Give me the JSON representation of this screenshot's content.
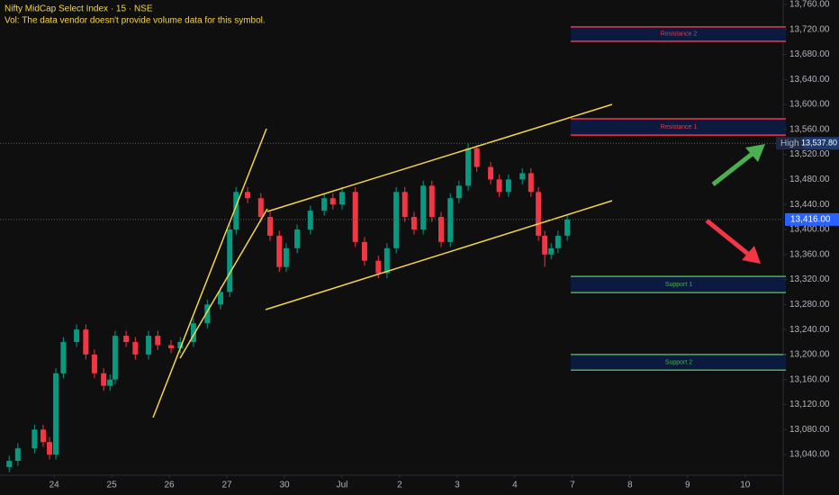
{
  "chart_data": {
    "type": "candlestick",
    "title": "Nifty MidCap Select Index · 15 · NSE",
    "subtitle": "Vol: The data vendor doesn't provide volume data for this symbol.",
    "up_color": "#089981",
    "down_color": "#f23645",
    "x": [
      -0.78,
      -0.63,
      -0.34,
      -0.19,
      -0.08,
      0.03,
      0.16,
      0.39,
      0.55,
      0.7,
      0.86,
      0.97,
      1.06,
      1.25,
      1.41,
      1.64,
      1.8,
      2.03,
      2.19,
      2.42,
      2.66,
      2.89,
      3.05,
      3.16,
      3.36,
      3.59,
      3.75,
      3.91,
      4.03,
      4.22,
      4.45,
      4.69,
      4.84,
      5.0,
      5.23,
      5.39,
      5.63,
      5.78,
      5.94,
      6.09,
      6.25,
      6.41,
      6.56,
      6.72,
      6.88,
      7.03,
      7.19,
      7.34,
      7.58,
      7.73,
      7.89,
      8.13,
      8.28,
      8.41,
      8.52,
      8.63,
      8.75,
      8.91
    ],
    "open": [
      13020,
      13030,
      13050,
      13080,
      13060,
      13040,
      13170,
      13220,
      13240,
      13200,
      13170,
      13150,
      13160,
      13230,
      13220,
      13200,
      13230,
      13215,
      13210,
      13220,
      13250,
      13280,
      13300,
      13400,
      13460,
      13450,
      13420,
      13390,
      13340,
      13370,
      13400,
      13430,
      13450,
      13440,
      13460,
      13380,
      13350,
      13330,
      13370,
      13460,
      13420,
      13400,
      13470,
      13420,
      13380,
      13450,
      13470,
      13530,
      13500,
      13480,
      13460,
      13480,
      13490,
      13460,
      13390,
      13360,
      13370,
      13390
    ],
    "high": [
      13038,
      13058,
      13088,
      13088,
      13068,
      13178,
      13228,
      13248,
      13248,
      13208,
      13178,
      13168,
      13238,
      13238,
      13228,
      13238,
      13238,
      13223,
      13228,
      13258,
      13288,
      13308,
      13408,
      13468,
      13468,
      13458,
      13428,
      13398,
      13378,
      13408,
      13438,
      13458,
      13458,
      13468,
      13468,
      13388,
      13358,
      13378,
      13468,
      13468,
      13428,
      13478,
      13478,
      13428,
      13458,
      13478,
      13537.8,
      13535,
      13508,
      13488,
      13488,
      13498,
      13498,
      13468,
      13398,
      13378,
      13398,
      13424
    ],
    "low": [
      13012,
      13022,
      13042,
      13052,
      13032,
      13032,
      13162,
      13212,
      13192,
      13162,
      13142,
      13142,
      13152,
      13212,
      13192,
      13192,
      13207,
      13202,
      13202,
      13212,
      13242,
      13272,
      13292,
      13392,
      13442,
      13412,
      13382,
      13332,
      13332,
      13362,
      13392,
      13422,
      13432,
      13432,
      13372,
      13342,
      13322,
      13322,
      13362,
      13412,
      13392,
      13392,
      13412,
      13372,
      13372,
      13442,
      13462,
      13492,
      13472,
      13452,
      13452,
      13472,
      13452,
      13382,
      13340,
      13352,
      13362,
      13382
    ],
    "close": [
      13030,
      13050,
      13080,
      13060,
      13040,
      13170,
      13220,
      13240,
      13200,
      13170,
      13150,
      13160,
      13230,
      13220,
      13200,
      13230,
      13215,
      13210,
      13220,
      13250,
      13280,
      13300,
      13400,
      13460,
      13450,
      13420,
      13390,
      13340,
      13370,
      13400,
      13430,
      13450,
      13440,
      13460,
      13380,
      13350,
      13330,
      13370,
      13460,
      13420,
      13400,
      13470,
      13420,
      13380,
      13450,
      13470,
      13530,
      13500,
      13480,
      13460,
      13480,
      13490,
      13460,
      13390,
      13360,
      13370,
      13390,
      13416
    ],
    "xlim": [
      -0.94,
      12.66
    ],
    "xticks": [
      {
        "value": 0,
        "label": "24"
      },
      {
        "value": 1,
        "label": "25"
      },
      {
        "value": 2,
        "label": "26"
      },
      {
        "value": 3,
        "label": "27"
      },
      {
        "value": 4,
        "label": "30"
      },
      {
        "value": 5,
        "label": "Jul"
      },
      {
        "value": 6,
        "label": "2"
      },
      {
        "value": 7,
        "label": "3"
      },
      {
        "value": 8,
        "label": "4"
      },
      {
        "value": 9,
        "label": "7"
      },
      {
        "value": 10,
        "label": "8"
      },
      {
        "value": 11,
        "label": "9"
      },
      {
        "value": 12,
        "label": "10"
      }
    ],
    "ylim": [
      13007,
      13767
    ],
    "yticks": [
      {
        "value": 13040,
        "label": "13,040.00"
      },
      {
        "value": 13080,
        "label": "13,080.00"
      },
      {
        "value": 13120,
        "label": "13,120.00"
      },
      {
        "value": 13160,
        "label": "13,160.00"
      },
      {
        "value": 13200,
        "label": "13,200.00"
      },
      {
        "value": 13240,
        "label": "13,240.00"
      },
      {
        "value": 13280,
        "label": "13,280.00"
      },
      {
        "value": 13320,
        "label": "13,320.00"
      },
      {
        "value": 13360,
        "label": "13,360.00"
      },
      {
        "value": 13400,
        "label": "13,400.00"
      },
      {
        "value": 13440,
        "label": "13,440.00"
      },
      {
        "value": 13480,
        "label": "13,480.00"
      },
      {
        "value": 13520,
        "label": "13,520.00"
      },
      {
        "value": 13560,
        "label": "13,560.00"
      },
      {
        "value": 13600,
        "label": "13,600.00"
      },
      {
        "value": 13640,
        "label": "13,640.00"
      },
      {
        "value": 13680,
        "label": "13,680.00"
      },
      {
        "value": 13720,
        "label": "13,720.00"
      },
      {
        "value": 13760,
        "label": "13,760.00"
      }
    ],
    "zones": [
      {
        "label": "Resistance 2",
        "top": 13724,
        "bottom": 13701,
        "color": "#f23645"
      },
      {
        "label": "Resistance 1",
        "top": 13577,
        "bottom": 13551,
        "color": "#f23645"
      },
      {
        "label": "Support 1",
        "top": 13325,
        "bottom": 13299,
        "color": "#4caf50"
      },
      {
        "label": "Support 2",
        "top": 13200,
        "bottom": 13175,
        "color": "#4caf50"
      }
    ],
    "high_marker": {
      "name": "High",
      "value": 13537.8,
      "label": "13,537.80"
    },
    "last_price": {
      "value": 13416,
      "label": "13,416.00"
    },
    "grid": false
  }
}
